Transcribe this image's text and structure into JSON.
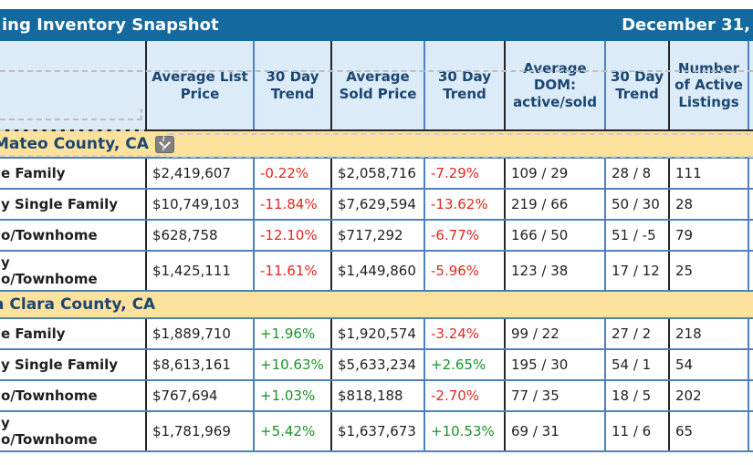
{
  "title_bar": {
    "title": "ing Inventory Snapshot",
    "date": "December 31,"
  },
  "colors": {
    "titlebar_blue": "#14699F",
    "header_bg": "#DCEBF8",
    "section_band_bg": "#FDE29E",
    "navy_text": "#1B4672",
    "negative_trend": "#E52620",
    "positive_trend": "#179327",
    "grid_blue": "#4E81BB",
    "grid_black": "#262626"
  },
  "icons": {
    "filter_dropdown": "chevron-down-icon"
  },
  "table": {
    "columns": [
      "",
      "Average List Price",
      "30 Day Trend",
      "Average Sold Price",
      "30 Day Trend",
      "Average DOM: active/sold",
      "30 Day Trend",
      "Number of Active Listings"
    ]
  },
  "sections": [
    {
      "name": "Mateo County, CA",
      "has_filter_dropdown": true,
      "rows": [
        {
          "label": "e Family",
          "list_price": "$2,419,607",
          "list_trend": "-0.22%",
          "sold_price": "$2,058,716",
          "sold_trend": "-7.29%",
          "dom": "109 / 29",
          "dom_trend": "28 / 8",
          "listings": "111"
        },
        {
          "label": "y Single Family",
          "list_price": "$10,749,103",
          "list_trend": "-11.84%",
          "sold_price": "$7,629,594",
          "sold_trend": "-13.62%",
          "dom": "219 / 66",
          "dom_trend": "50 / 30",
          "listings": "28"
        },
        {
          "label": "o/Townhome",
          "list_price": "$628,758",
          "list_trend": "-12.10%",
          "sold_price": "$717,292",
          "sold_trend": "-6.77%",
          "dom": "166 / 50",
          "dom_trend": "51 / -5",
          "listings": "79"
        },
        {
          "label": "y\no/Townhome",
          "list_price": "$1,425,111",
          "list_trend": "-11.61%",
          "sold_price": "$1,449,860",
          "sold_trend": "-5.96%",
          "dom": "123 / 38",
          "dom_trend": "17 / 12",
          "listings": "25"
        }
      ]
    },
    {
      "name": "a Clara County, CA",
      "has_filter_dropdown": false,
      "rows": [
        {
          "label": "e Family",
          "list_price": "$1,889,710",
          "list_trend": "+1.96%",
          "sold_price": "$1,920,574",
          "sold_trend": "-3.24%",
          "dom": "99 / 22",
          "dom_trend": "27 / 2",
          "listings": "218"
        },
        {
          "label": "y Single Family",
          "list_price": "$8,613,161",
          "list_trend": "+10.63%",
          "sold_price": "$5,633,234",
          "sold_trend": "+2.65%",
          "dom": "195 / 30",
          "dom_trend": "54 / 1",
          "listings": "54"
        },
        {
          "label": "o/Townhome",
          "list_price": "$767,694",
          "list_trend": "+1.03%",
          "sold_price": "$818,188",
          "sold_trend": "-2.70%",
          "dom": "77 / 35",
          "dom_trend": "18 / 5",
          "listings": "202"
        },
        {
          "label": "y\no/Townhome",
          "list_price": "$1,781,969",
          "list_trend": "+5.42%",
          "sold_price": "$1,637,673",
          "sold_trend": "+10.53%",
          "dom": "69 / 31",
          "dom_trend": "11 / 6",
          "listings": "65"
        }
      ]
    }
  ]
}
